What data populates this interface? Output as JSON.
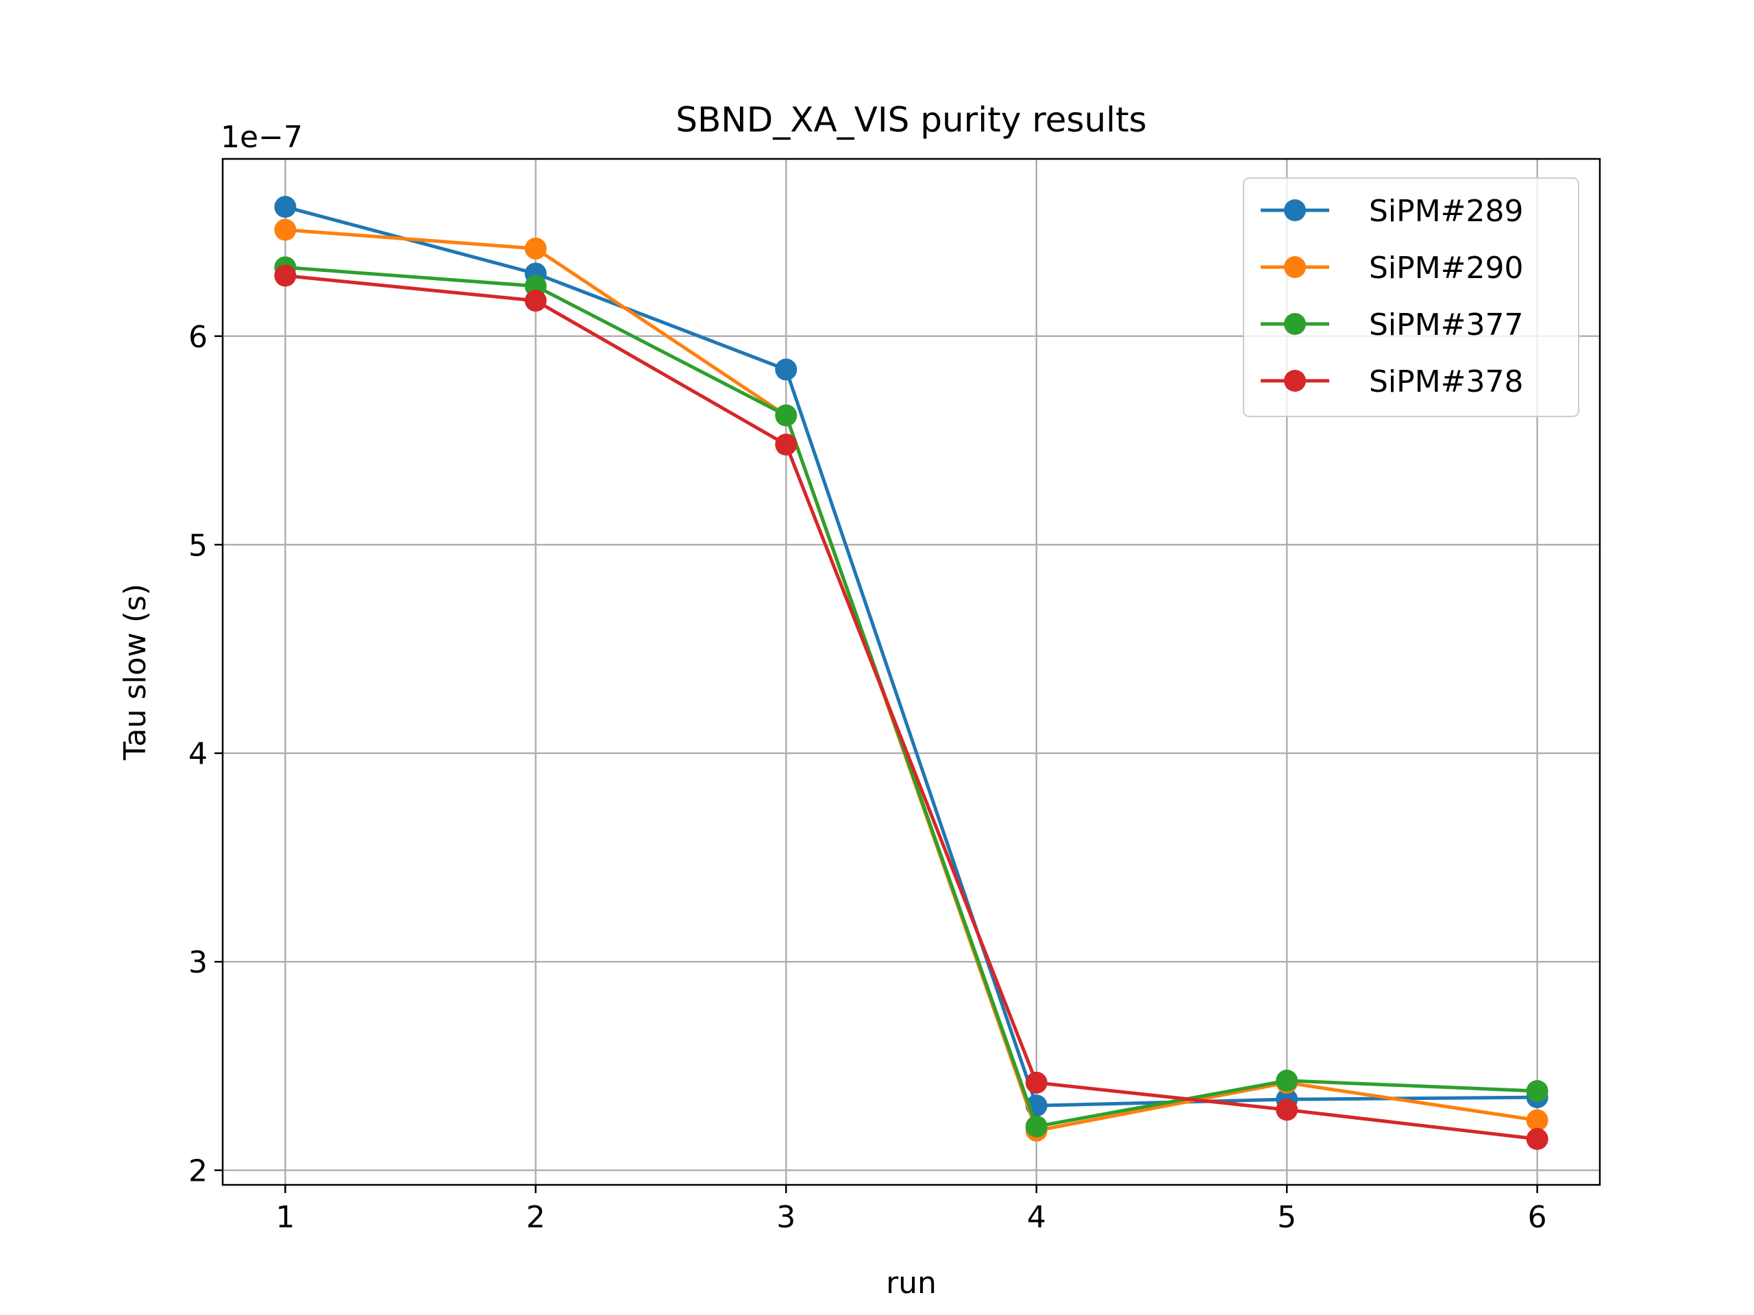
{
  "chart_data": {
    "type": "line",
    "title": "SBND_XA_VIS purity results",
    "xlabel": "run",
    "ylabel": "Tau slow (s)",
    "y_offset_label": "1e−7",
    "x": [
      1,
      2,
      3,
      4,
      5,
      6
    ],
    "xlim": [
      0.75,
      6.25
    ],
    "ylim": [
      1.93e-07,
      6.85e-07
    ],
    "xticks": [
      1,
      2,
      3,
      4,
      5,
      6
    ],
    "xtick_labels": [
      "1",
      "2",
      "3",
      "4",
      "5",
      "6"
    ],
    "yticks": [
      2e-07,
      3e-07,
      4e-07,
      5e-07,
      6e-07
    ],
    "ytick_labels": [
      "2",
      "3",
      "4",
      "5",
      "6"
    ],
    "grid": true,
    "legend_position": "top-right",
    "series": [
      {
        "name": "SiPM#289",
        "color": "#1f77b4",
        "values": [
          6.62e-07,
          6.3e-07,
          5.84e-07,
          2.31e-07,
          2.34e-07,
          2.35e-07
        ]
      },
      {
        "name": "SiPM#290",
        "color": "#ff7f0e",
        "values": [
          6.51e-07,
          6.42e-07,
          5.62e-07,
          2.19e-07,
          2.42e-07,
          2.24e-07
        ]
      },
      {
        "name": "SiPM#377",
        "color": "#2ca02c",
        "values": [
          6.33e-07,
          6.24e-07,
          5.62e-07,
          2.21e-07,
          2.43e-07,
          2.38e-07
        ]
      },
      {
        "name": "SiPM#378",
        "color": "#d62728",
        "values": [
          6.29e-07,
          6.17e-07,
          5.48e-07,
          2.42e-07,
          2.29e-07,
          2.15e-07
        ]
      }
    ]
  }
}
